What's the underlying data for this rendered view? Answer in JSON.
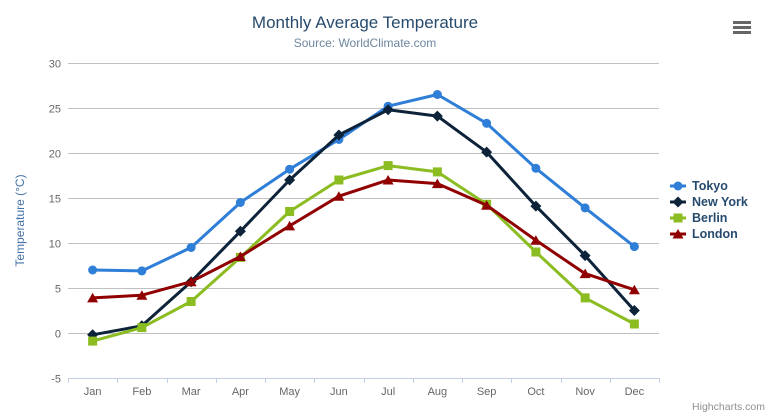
{
  "chart_data": {
    "type": "line",
    "title": "Monthly Average Temperature",
    "subtitle": "Source: WorldClimate.com",
    "categories": [
      "Jan",
      "Feb",
      "Mar",
      "Apr",
      "May",
      "Jun",
      "Jul",
      "Aug",
      "Sep",
      "Oct",
      "Nov",
      "Dec"
    ],
    "ylabel": "Temperature (°C)",
    "ylim": [
      -5,
      30
    ],
    "yticks": [
      -5,
      0,
      5,
      10,
      15,
      20,
      25,
      30
    ],
    "grid": true,
    "legend_position": "right",
    "series": [
      {
        "name": "Tokyo",
        "color": "#2f7ed8",
        "marker": "circle",
        "values": [
          7.0,
          6.9,
          9.5,
          14.5,
          18.2,
          21.5,
          25.2,
          26.5,
          23.3,
          18.3,
          13.9,
          9.6
        ]
      },
      {
        "name": "New York",
        "color": "#0d233a",
        "marker": "diamond",
        "values": [
          -0.2,
          0.8,
          5.7,
          11.3,
          17.0,
          22.0,
          24.8,
          24.1,
          20.1,
          14.1,
          8.6,
          2.5
        ]
      },
      {
        "name": "Berlin",
        "color": "#8bbc21",
        "marker": "square",
        "values": [
          -0.9,
          0.6,
          3.5,
          8.4,
          13.5,
          17.0,
          18.6,
          17.9,
          14.3,
          9.0,
          3.9,
          1.0
        ]
      },
      {
        "name": "London",
        "color": "#910000",
        "marker": "triangle",
        "values": [
          3.9,
          4.2,
          5.7,
          8.5,
          11.9,
          15.2,
          17.0,
          16.6,
          14.2,
          10.3,
          6.6,
          4.8
        ]
      }
    ],
    "colors": {
      "title": "#274b6d",
      "subtitle": "#6d869f",
      "axis_title": "#4572a7",
      "axis_labels": "#666666",
      "gridline": "#c0c0c0",
      "axis_line": "#c0d0e0",
      "legend_text": "#274b6d",
      "credit": "#909090"
    },
    "credit": "Highcharts.com"
  }
}
